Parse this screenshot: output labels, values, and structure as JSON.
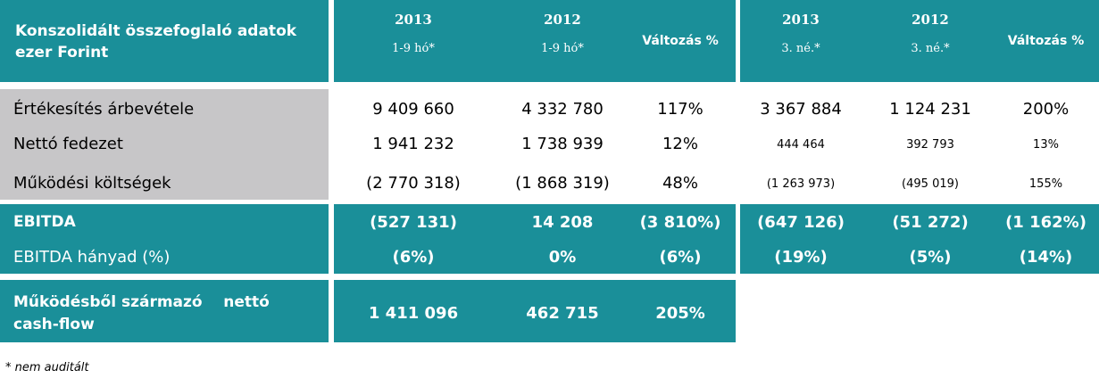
{
  "header": {
    "title_line1": "Konszolidált összefoglaló adatok",
    "title_line2": "ezer Forint",
    "ytd": [
      {
        "year": "2013",
        "period": "1-9 hó*"
      },
      {
        "year": "2012",
        "period": "1-9 hó*"
      }
    ],
    "ytd_change": "Változás %",
    "q3": [
      {
        "year": "2013",
        "period": "3. né.*"
      },
      {
        "year": "2012",
        "period": "3. né.*"
      }
    ],
    "q3_change": "Változás %"
  },
  "rows": [
    {
      "label": "Értékesítés árbevétele",
      "values": [
        "9 409 660",
        "4 332 780",
        "117%",
        "3 367 884",
        "1 124 231",
        "200%"
      ]
    },
    {
      "label": "Nettó fedezet",
      "values": [
        "1 941 232",
        "1 738 939",
        "12%",
        "444 464",
        "392 793",
        "13%"
      ]
    },
    {
      "label": "Működési költségek",
      "values": [
        "(2 770 318)",
        "(1 868 319)",
        "48%",
        "(1 263 973)",
        "(495 019)",
        "155%"
      ]
    }
  ],
  "ebitda": {
    "label": "EBITDA",
    "values": [
      "(527 131)",
      "14 208",
      "(3 810%)",
      "(647 126)",
      "(51 272)",
      "(1 162%)"
    ],
    "margin_label": "EBITDA hányad (%)",
    "margin_values": [
      "(6%)",
      "0%",
      "(6%)",
      "(19%)",
      "(5%)",
      "(14%)"
    ]
  },
  "cashflow": {
    "label_line1": "Működésből származó    nettó",
    "label_line2": "cash-flow",
    "values": [
      "1 411 096",
      "462 715",
      "205%"
    ]
  },
  "footnote": "* nem auditált",
  "colors": {
    "teal": "#1a8f99",
    "grey": "#c7c6c8"
  }
}
